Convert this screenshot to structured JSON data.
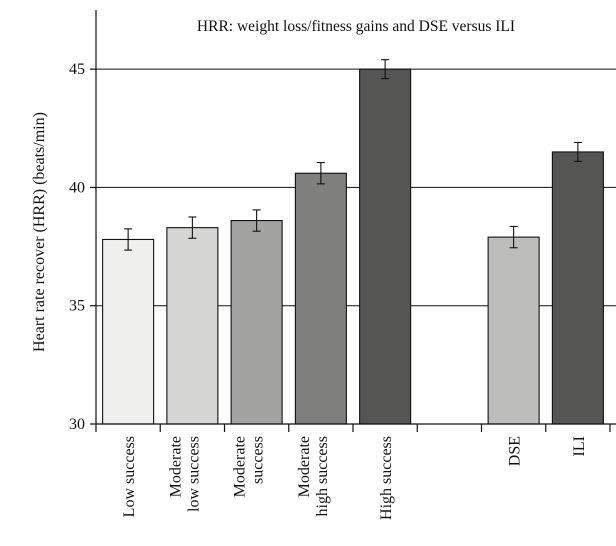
{
  "chart_data": {
    "type": "bar",
    "title": "HRR: weight loss/fitness gains and DSE versus ILI",
    "xlabel": "",
    "ylabel": "Heart rate recover (HRR) (beats/min)",
    "ylim": [
      30,
      47.5
    ],
    "yticks": [
      30,
      35,
      40,
      45
    ],
    "gridlines": [
      35,
      40,
      45
    ],
    "grid": true,
    "legend": "none",
    "categories": [
      "Low success",
      "Moderate low success",
      "Moderate success",
      "Moderate high success",
      "High success",
      "",
      "DSE",
      "ILI"
    ],
    "category_lines": [
      [
        "Low success"
      ],
      [
        "Moderate",
        "low success"
      ],
      [
        "Moderate",
        "success"
      ],
      [
        "Moderate",
        "high success"
      ],
      [
        "High success"
      ],
      [],
      [
        "DSE"
      ],
      [
        "ILI"
      ]
    ],
    "values": [
      37.8,
      38.3,
      38.6,
      40.6,
      45.0,
      null,
      37.9,
      41.5
    ],
    "errors": [
      0.45,
      0.45,
      0.45,
      0.45,
      0.4,
      null,
      0.45,
      0.4
    ],
    "colors": [
      "#f0f1ef",
      "#d6d6d4",
      "#a3a3a1",
      "#7f7f7d",
      "#555553",
      null,
      "#bdbdbb",
      "#555553"
    ]
  }
}
